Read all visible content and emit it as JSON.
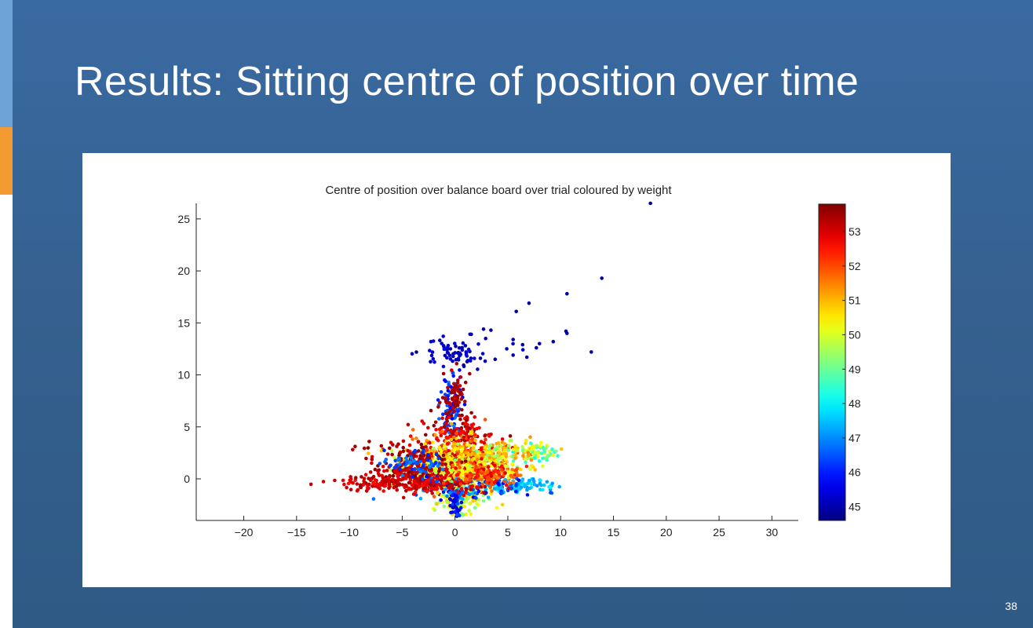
{
  "slide": {
    "title": "Results: Sitting centre of position over time",
    "page_number": "38",
    "colors": {
      "background": "#35608f",
      "accent_blue": "#6ea3d8",
      "accent_orange": "#f39a31"
    }
  },
  "chart_data": {
    "type": "scatter",
    "title": "Centre of position over balance board over trial coloured by weight",
    "xlabel": "",
    "ylabel": "",
    "xlim": [
      -24.5,
      32.5
    ],
    "ylim": [
      -4,
      26.5
    ],
    "x_ticks": [
      -20,
      -15,
      -10,
      -5,
      0,
      5,
      10,
      15,
      20,
      25,
      30
    ],
    "x_tick_labels": [
      "−20",
      "−15",
      "−10",
      "−5",
      "0",
      "5",
      "10",
      "15",
      "20",
      "25",
      "30"
    ],
    "y_ticks": [
      0,
      5,
      10,
      15,
      20,
      25
    ],
    "y_tick_labels": [
      "0",
      "5",
      "10",
      "15",
      "20",
      "25"
    ],
    "grid": false,
    "colorbar": {
      "label": "",
      "range": [
        44.6,
        53.8
      ],
      "ticks": [
        45,
        46,
        47,
        48,
        49,
        50,
        51,
        52,
        53
      ],
      "tick_labels": [
        "45",
        "46",
        "47",
        "48",
        "49",
        "50",
        "51",
        "52",
        "53"
      ],
      "colormap": "jet"
    },
    "outlier_points": [
      {
        "x": 18.5,
        "y": 26.5,
        "w": 45
      },
      {
        "x": 13.9,
        "y": 19.3,
        "w": 45
      },
      {
        "x": 10.6,
        "y": 17.8,
        "w": 45
      },
      {
        "x": 7.0,
        "y": 16.9,
        "w": 45
      },
      {
        "x": 5.8,
        "y": 16.1,
        "w": 45
      },
      {
        "x": 10.5,
        "y": 14.2,
        "w": 45
      },
      {
        "x": 10.6,
        "y": 14.0,
        "w": 45
      },
      {
        "x": 12.9,
        "y": 12.2,
        "w": 45
      },
      {
        "x": 9.3,
        "y": 13.2,
        "w": 45
      },
      {
        "x": 8.0,
        "y": 13.0,
        "w": 45
      },
      {
        "x": 7.7,
        "y": 12.6,
        "w": 45
      },
      {
        "x": 6.4,
        "y": 12.9,
        "w": 45
      },
      {
        "x": 5.5,
        "y": 13.4,
        "w": 45
      },
      {
        "x": 4.9,
        "y": 12.5,
        "w": 45
      },
      {
        "x": 6.8,
        "y": 11.7,
        "w": 45
      },
      {
        "x": 5.5,
        "y": 11.9,
        "w": 45
      },
      {
        "x": 3.8,
        "y": 11.5,
        "w": 45
      },
      {
        "x": 2.4,
        "y": 11.6,
        "w": 45
      },
      {
        "x": 3.4,
        "y": 14.3,
        "w": 45
      },
      {
        "x": 2.7,
        "y": 14.4,
        "w": 45
      }
    ],
    "clusters": [
      {
        "cx": 0.2,
        "cy": 12.1,
        "sx": 1.6,
        "sy": 0.8,
        "n": 70,
        "w": [
          45,
          45.5
        ]
      },
      {
        "cx": -0.3,
        "cy": 6.5,
        "sx": 0.5,
        "sy": 1.6,
        "n": 90,
        "w": [
          45.5,
          47
        ]
      },
      {
        "cx": 0.0,
        "cy": 8.0,
        "sx": 0.6,
        "sy": 1.0,
        "n": 70,
        "w": [
          53,
          53.7
        ]
      },
      {
        "cx": 0.5,
        "cy": 4.3,
        "sx": 1.5,
        "sy": 1.0,
        "n": 120,
        "w": [
          52.5,
          53.7
        ]
      },
      {
        "cx": 0.8,
        "cy": 1.8,
        "sx": 2.4,
        "sy": 1.2,
        "n": 500,
        "w": [
          50.5,
          53
        ]
      },
      {
        "cx": 0.0,
        "cy": 1.0,
        "sx": 2.8,
        "sy": 1.0,
        "n": 320,
        "w": [
          49.5,
          51
        ]
      },
      {
        "cx": -3.2,
        "cy": 0.6,
        "sx": 2.0,
        "sy": 0.8,
        "n": 220,
        "w": [
          52.8,
          53.8
        ]
      },
      {
        "cx": -7.5,
        "cy": -0.3,
        "sx": 1.8,
        "sy": 0.35,
        "n": 90,
        "w": [
          52.5,
          53.5
        ]
      },
      {
        "cx": -5.5,
        "cy": 2.5,
        "sx": 2.2,
        "sy": 0.6,
        "n": 45,
        "w": [
          53,
          53.8
        ]
      },
      {
        "cx": 0.5,
        "cy": -1.5,
        "sx": 1.2,
        "sy": 0.9,
        "n": 150,
        "w": [
          49,
          51
        ]
      },
      {
        "cx": 0.0,
        "cy": -2.5,
        "sx": 0.25,
        "sy": 0.8,
        "n": 40,
        "w": [
          45,
          46.5
        ]
      },
      {
        "cx": 5.5,
        "cy": -0.6,
        "sx": 2.0,
        "sy": 0.35,
        "n": 90,
        "w": [
          47,
          48
        ]
      },
      {
        "cx": 7.5,
        "cy": 2.6,
        "sx": 1.0,
        "sy": 0.5,
        "n": 70,
        "w": [
          48,
          51
        ]
      },
      {
        "cx": 4.2,
        "cy": 2.5,
        "sx": 1.8,
        "sy": 0.7,
        "n": 90,
        "w": [
          49,
          51.5
        ]
      },
      {
        "cx": 1.2,
        "cy": -0.8,
        "sx": 3.0,
        "sy": 0.6,
        "n": 120,
        "w": [
          45.5,
          47.5
        ]
      },
      {
        "cx": -3.5,
        "cy": 1.5,
        "sx": 1.5,
        "sy": 0.6,
        "n": 60,
        "w": [
          46,
          47
        ]
      },
      {
        "cx": -2.0,
        "cy": -0.6,
        "sx": 2.0,
        "sy": 0.4,
        "n": 100,
        "w": [
          52.5,
          53.5
        ]
      },
      {
        "cx": 3.0,
        "cy": 0.3,
        "sx": 1.5,
        "sy": 0.6,
        "n": 120,
        "w": [
          51.5,
          53
        ]
      }
    ]
  }
}
